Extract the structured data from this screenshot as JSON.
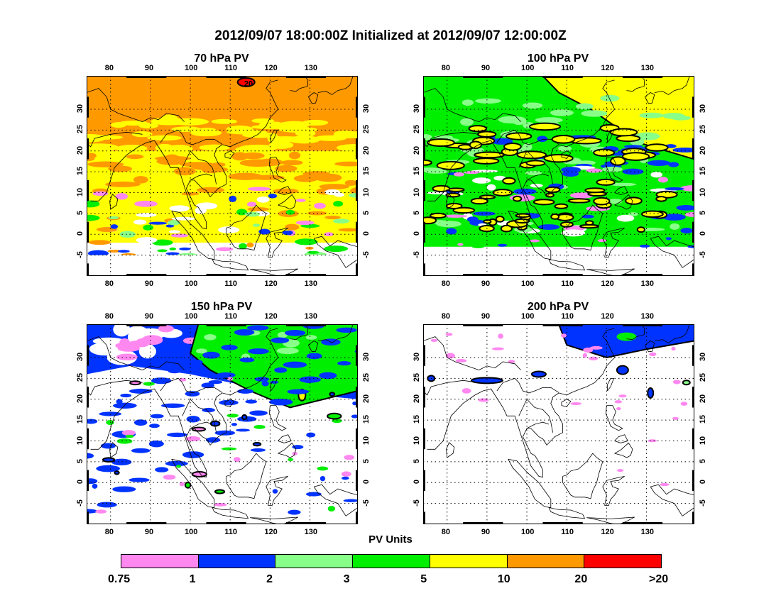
{
  "main_title": "2012/09/07 18:00:00Z Initialized at 2012/09/07 12:00:00Z",
  "panels": [
    {
      "title": "70 hPa PV",
      "fill": "#ff9900",
      "features": "orange"
    },
    {
      "title": "100 hPa PV",
      "fill": "#ffff00",
      "features": "yellowgreen"
    },
    {
      "title": "150 hPa PV",
      "fill": "#ffffff",
      "features": "bluegreen"
    },
    {
      "title": "200 hPa PV",
      "fill": "#ffffff",
      "features": "sparse"
    }
  ],
  "lon_ticks": [
    "80",
    "90",
    "100",
    "110",
    "120",
    "130"
  ],
  "lat_ticks": [
    "30",
    "25",
    "20",
    "15",
    "10",
    "5",
    "0",
    "-5"
  ],
  "annotation_20": "20",
  "legend": {
    "title": "PV Units",
    "colors": [
      "#ff88f0",
      "#0033ff",
      "#88ff88",
      "#00ee00",
      "#ffff00",
      "#ff9900",
      "#ff0000"
    ],
    "labels": [
      "0.75",
      "1",
      "2",
      "3",
      "5",
      "10",
      "20",
      ">20"
    ]
  }
}
